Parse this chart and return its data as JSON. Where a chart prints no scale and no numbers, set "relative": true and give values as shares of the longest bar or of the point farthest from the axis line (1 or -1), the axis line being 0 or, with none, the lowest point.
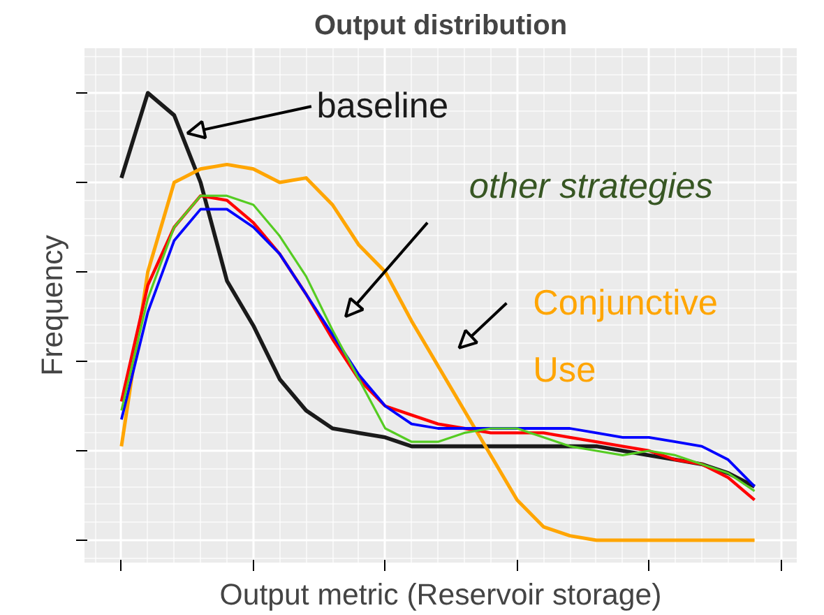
{
  "chart_data": {
    "type": "line",
    "title": "Output distribution",
    "xlabel": "Output metric (Reservoir storage)",
    "ylabel": "Frequency",
    "relative": true,
    "tick_labels": false,
    "grid": true,
    "legend": false,
    "marker": "none",
    "line_style": "solid",
    "categories": [
      null,
      null,
      null,
      null,
      null,
      null,
      null,
      null,
      null,
      null,
      null,
      null,
      null,
      null,
      null,
      null,
      null,
      null,
      null,
      null,
      null,
      null,
      null,
      null,
      null
    ],
    "annotations": [
      "other strategies"
    ],
    "series": [
      {
        "name": "baseline",
        "color": "#1a1a1a",
        "values": [
          0.81,
          1.0,
          0.95,
          0.8,
          0.58,
          0.48,
          0.36,
          0.29,
          0.25,
          0.24,
          0.23,
          0.21,
          0.21,
          0.21,
          0.21,
          0.21,
          0.21,
          0.21,
          0.21,
          0.2,
          0.19,
          0.18,
          0.17,
          0.15,
          0.12
        ]
      },
      {
        "name": "Conjunctive Use",
        "color": "#ffa500",
        "values": [
          0.21,
          0.6,
          0.8,
          0.83,
          0.84,
          0.83,
          0.8,
          0.81,
          0.75,
          0.66,
          0.6,
          0.49,
          0.39,
          0.29,
          0.19,
          0.09,
          0.03,
          0.01,
          0,
          0,
          0,
          0,
          0,
          0,
          0
        ]
      },
      {
        "color": "#ff0000",
        "values": [
          0.31,
          0.57,
          0.7,
          0.77,
          0.76,
          0.71,
          0.64,
          0.55,
          0.45,
          0.36,
          0.3,
          0.28,
          0.26,
          0.25,
          0.24,
          0.24,
          0.24,
          0.23,
          0.22,
          0.21,
          0.2,
          0.18,
          0.17,
          0.14,
          0.09
        ]
      },
      {
        "color": "#0000ff",
        "values": [
          0.27,
          0.51,
          0.67,
          0.74,
          0.74,
          0.7,
          0.64,
          0.55,
          0.46,
          0.37,
          0.3,
          0.26,
          0.25,
          0.25,
          0.25,
          0.25,
          0.25,
          0.25,
          0.24,
          0.23,
          0.23,
          0.22,
          0.21,
          0.18,
          0.12
        ]
      },
      {
        "color": "#55cc22",
        "values": [
          0.29,
          0.54,
          0.7,
          0.77,
          0.77,
          0.75,
          0.68,
          0.59,
          0.47,
          0.36,
          0.25,
          0.22,
          0.22,
          0.24,
          0.25,
          0.25,
          0.23,
          0.21,
          0.2,
          0.19,
          0.2,
          0.19,
          0.17,
          0.15,
          0.11
        ]
      }
    ]
  }
}
